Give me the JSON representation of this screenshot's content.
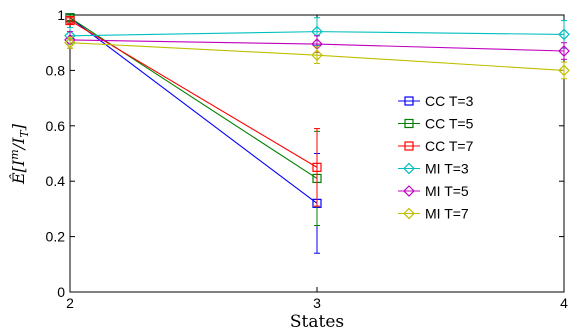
{
  "chart_data": {
    "type": "line",
    "title": "",
    "xlabel": "States",
    "ylabel": "Ê[I^m/I_T]",
    "xlim": [
      2,
      4
    ],
    "ylim": [
      0,
      1
    ],
    "xticks": [
      "2",
      "3",
      "4"
    ],
    "yticks": [
      "0",
      "0.2",
      "0.4",
      "0.6",
      "0.8",
      "1"
    ],
    "grid": false,
    "legend_position": "right",
    "series": [
      {
        "name": "CC T=3",
        "color": "#0000ff",
        "marker": "square",
        "x": [
          2,
          3
        ],
        "y": [
          0.99,
          0.32
        ],
        "err": [
          0.01,
          0.18
        ]
      },
      {
        "name": "CC T=5",
        "color": "#008000",
        "marker": "square",
        "x": [
          2,
          3
        ],
        "y": [
          0.99,
          0.41
        ],
        "err": [
          0.01,
          0.17
        ]
      },
      {
        "name": "CC T=7",
        "color": "#ff0000",
        "marker": "square",
        "x": [
          2,
          3
        ],
        "y": [
          0.98,
          0.45
        ],
        "err": [
          0.01,
          0.14
        ]
      },
      {
        "name": "MI T=3",
        "color": "#00bfbf",
        "marker": "diamond",
        "x": [
          2,
          3,
          4
        ],
        "y": [
          0.925,
          0.94,
          0.93
        ],
        "err": [
          0.03,
          0.05,
          0.05
        ]
      },
      {
        "name": "MI T=5",
        "color": "#bf00bf",
        "marker": "diamond",
        "x": [
          2,
          3,
          4
        ],
        "y": [
          0.91,
          0.895,
          0.87
        ],
        "err": [
          0.03,
          0.03,
          0.03
        ]
      },
      {
        "name": "MI T=7",
        "color": "#bfbf00",
        "marker": "diamond",
        "x": [
          2,
          3,
          4
        ],
        "y": [
          0.9,
          0.855,
          0.8
        ],
        "err": [
          0.02,
          0.03,
          0.03
        ]
      }
    ]
  }
}
